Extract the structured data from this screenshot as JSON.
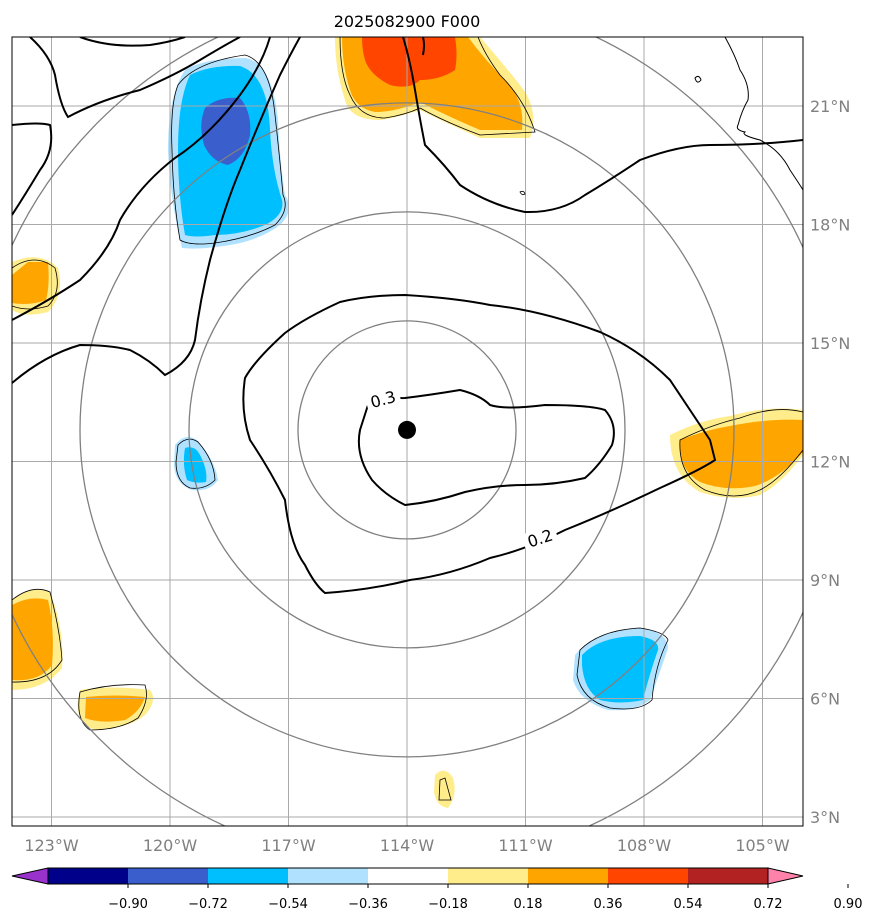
{
  "title": "2025082900 F000",
  "map": {
    "lat_ticks": [
      {
        "value": 21,
        "label": "21°N"
      },
      {
        "value": 18,
        "label": "18°N"
      },
      {
        "value": 15,
        "label": "15°N"
      },
      {
        "value": 12,
        "label": "12°N"
      },
      {
        "value": 9,
        "label": "9°N"
      },
      {
        "value": 6,
        "label": "6°N"
      },
      {
        "value": 3,
        "label": "3°N"
      }
    ],
    "lon_ticks": [
      {
        "value": -123,
        "label": "123°W"
      },
      {
        "value": -120,
        "label": "120°W"
      },
      {
        "value": -117,
        "label": "117°W"
      },
      {
        "value": -114,
        "label": "114°W"
      },
      {
        "value": -111,
        "label": "111°W"
      },
      {
        "value": -108,
        "label": "108°W"
      },
      {
        "value": -105,
        "label": "105°W"
      }
    ],
    "center": {
      "lon": -114,
      "lat": 12.8
    },
    "contour_labels": [
      "0.3",
      "0.2"
    ]
  },
  "colorbar": {
    "tick_labels": [
      "−0.90",
      "−0.72",
      "−0.54",
      "−0.36",
      "−0.18",
      "0.18",
      "0.36",
      "0.54",
      "0.72",
      "0.90"
    ],
    "colors": [
      "#9932cc",
      "#00008b",
      "#3a5fcd",
      "#00bfff",
      "#b0e2ff",
      "#ffffff",
      "#ffec8b",
      "#ffa500",
      "#ff4500",
      "#b22222",
      "#ff82ab"
    ]
  },
  "colors": {
    "grid": "#a9a9a9",
    "range_rings": "#808080",
    "tick_text": "#808080"
  }
}
